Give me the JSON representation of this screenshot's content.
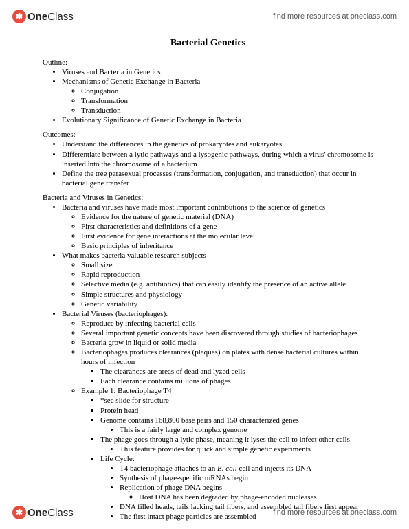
{
  "brand": {
    "icon_bg": "#e74c3c",
    "icon_glyph": "✱",
    "name_part1": "One",
    "name_part2": "Class",
    "tagline": "find more resources at oneclass.com"
  },
  "doc": {
    "title": "Bacterial Genetics",
    "outline_label": "Outline:",
    "outline": {
      "i0": "Viruses and Bacteria in Genetics",
      "i1": "Mechanisms of Genetic Exchange in Bacteria",
      "i1_sub": {
        "a": "Conjugation",
        "b": "Transformation",
        "c": "Transduction"
      },
      "i2": "Evolutionary Significance of Genetic Exchange in Bacteria"
    },
    "outcomes_label": "Outcomes:",
    "outcomes": {
      "i0": "Understand the differences in the genetics of prokaryotes and eukaryotes",
      "i1": "Differentiate between a lytic pathways and a lysogenic pathways, during which a virus' chromosome is inserted into the chromosome of a bacterium",
      "i2": "Define the tree parasexual processes (transformation, conjugation, and transduction) that occur in bacterial gene transfer"
    },
    "bvg_label": "Bacteria and Viruses in Genetics:",
    "bvg": {
      "i0": "Bacteria and viruses have made most important contributions to the science of genetics",
      "i0_sub": {
        "a": "Evidence for the nature of genetic material (DNA)",
        "b": "First characteristics and definitions of a gene",
        "c": "First evidence for gene interactions at the molecular level",
        "d": "Basic principles of inheritance"
      },
      "i1": "What makes bacteria valuable research subjects",
      "i1_sub": {
        "a": "Small size",
        "b": "Rapid reproduction",
        "c": "Selective media (e.g. antibiotics) that can easily identify the presence of an active allele",
        "d": "Simple structures and physiology",
        "e": "Genetic variability"
      },
      "i2": "Bacterial Viruses (bacteriophages):",
      "i2_sub": {
        "a": "Reproduce by infecting bacterial cells",
        "b": "Several important genetic concepts have been discovered through studies of bacteriophages",
        "c": "Bacteria grow in liquid or solid media",
        "d": "Bacteriophages produces clearances (plaques) on plates with dense bacterial cultures within hours of infection",
        "d_sub": {
          "a": "The clearances are areas of dead and lyzed cells",
          "b": "Each clearance contains millions of phages"
        },
        "e": "Example 1: Bacteriophage T4",
        "e_sub": {
          "a": "*see slide for structure",
          "b": "Protein head",
          "c": "Genome contains 168,800 base pairs and 150 characterized genes",
          "c_sub": {
            "a": "This is a fairly large and complex genome"
          },
          "d": "The phage goes through a lytic phase, meaning it lyses the cell to infect other cells",
          "d_sub": {
            "a": "This feature provides for quick and simple genetic experiments"
          },
          "e": "Life Cycle:",
          "e_sub": {
            "a_pre": "T4 bacteriophage attaches to an ",
            "a_it": "E. coli",
            "a_post": " cell and injects its DNA",
            "b": "Synthesis of phage-specific mRNAs begin",
            "c": "Replication of phage DNA begins",
            "c_sub": {
              "a": "Host DNA has been degraded by phage-encoded nucleases"
            },
            "d": "DNA filled heads, tails lacking tail fibers, and assembled tail fibers first appear",
            "e": "The first intact phage particles are assembled"
          }
        }
      }
    }
  }
}
